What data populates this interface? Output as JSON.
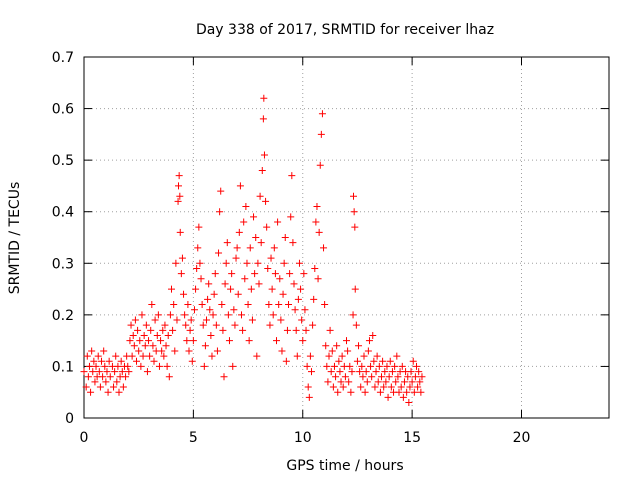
{
  "chart_data": {
    "type": "scatter",
    "title": "Day 338 of 2017, SRMTID for receiver lhaz",
    "xlabel": "GPS time / hours",
    "ylabel": "SRMTID / TECUs",
    "xlim": [
      0,
      24
    ],
    "ylim": [
      0,
      0.7
    ],
    "x_ticks": [
      0,
      5,
      10,
      15,
      20
    ],
    "y_ticks": [
      0,
      0.1,
      0.2,
      0.3,
      0.4,
      0.5,
      0.6,
      0.7
    ],
    "x_tick_labels": [
      "0",
      "5",
      "10",
      "15",
      "20"
    ],
    "y_tick_labels": [
      "0",
      "0.1",
      "0.2",
      "0.3",
      "0.4",
      "0.5",
      "0.6",
      "0.7"
    ],
    "grid": true,
    "marker": "+",
    "color": "#ff0000",
    "series": [
      {
        "name": "SRMTID",
        "points": [
          [
            0.0,
            0.09
          ],
          [
            0.1,
            0.06
          ],
          [
            0.15,
            0.12
          ],
          [
            0.2,
            0.08
          ],
          [
            0.25,
            0.1
          ],
          [
            0.3,
            0.05
          ],
          [
            0.35,
            0.13
          ],
          [
            0.4,
            0.09
          ],
          [
            0.45,
            0.11
          ],
          [
            0.5,
            0.07
          ],
          [
            0.55,
            0.1
          ],
          [
            0.6,
            0.08
          ],
          [
            0.65,
            0.12
          ],
          [
            0.7,
            0.09
          ],
          [
            0.75,
            0.06
          ],
          [
            0.8,
            0.11
          ],
          [
            0.85,
            0.08
          ],
          [
            0.9,
            0.13
          ],
          [
            0.95,
            0.1
          ],
          [
            1.0,
            0.07
          ],
          [
            1.05,
            0.09
          ],
          [
            1.1,
            0.05
          ],
          [
            1.15,
            0.11
          ],
          [
            1.2,
            0.08
          ],
          [
            1.3,
            0.1
          ],
          [
            1.35,
            0.06
          ],
          [
            1.4,
            0.09
          ],
          [
            1.45,
            0.12
          ],
          [
            1.5,
            0.07
          ],
          [
            1.55,
            0.1
          ],
          [
            1.6,
            0.05
          ],
          [
            1.65,
            0.08
          ],
          [
            1.7,
            0.11
          ],
          [
            1.75,
            0.09
          ],
          [
            1.8,
            0.06
          ],
          [
            1.85,
            0.1
          ],
          [
            1.9,
            0.08
          ],
          [
            1.95,
            0.12
          ],
          [
            2.0,
            0.1
          ],
          [
            2.05,
            0.09
          ],
          [
            2.1,
            0.15
          ],
          [
            2.15,
            0.18
          ],
          [
            2.2,
            0.12
          ],
          [
            2.25,
            0.16
          ],
          [
            2.3,
            0.14
          ],
          [
            2.35,
            0.19
          ],
          [
            2.4,
            0.11
          ],
          [
            2.45,
            0.17
          ],
          [
            2.5,
            0.13
          ],
          [
            2.55,
            0.15
          ],
          [
            2.6,
            0.1
          ],
          [
            2.65,
            0.2
          ],
          [
            2.7,
            0.12
          ],
          [
            2.75,
            0.16
          ],
          [
            2.8,
            0.14
          ],
          [
            2.85,
            0.18
          ],
          [
            2.9,
            0.09
          ],
          [
            2.95,
            0.15
          ],
          [
            3.0,
            0.12
          ],
          [
            3.05,
            0.17
          ],
          [
            3.1,
            0.22
          ],
          [
            3.15,
            0.14
          ],
          [
            3.2,
            0.11
          ],
          [
            3.25,
            0.19
          ],
          [
            3.3,
            0.13
          ],
          [
            3.35,
            0.16
          ],
          [
            3.4,
            0.2
          ],
          [
            3.45,
            0.1
          ],
          [
            3.5,
            0.15
          ],
          [
            3.55,
            0.13
          ],
          [
            3.6,
            0.17
          ],
          [
            3.65,
            0.12
          ],
          [
            3.7,
            0.18
          ],
          [
            3.75,
            0.14
          ],
          [
            3.8,
            0.1
          ],
          [
            3.85,
            0.16
          ],
          [
            3.9,
            0.08
          ],
          [
            3.95,
            0.2
          ],
          [
            4.0,
            0.25
          ],
          [
            4.05,
            0.17
          ],
          [
            4.1,
            0.22
          ],
          [
            4.15,
            0.13
          ],
          [
            4.2,
            0.3
          ],
          [
            4.25,
            0.19
          ],
          [
            4.3,
            0.42
          ],
          [
            4.32,
            0.45
          ],
          [
            4.35,
            0.47
          ],
          [
            4.38,
            0.43
          ],
          [
            4.4,
            0.36
          ],
          [
            4.45,
            0.28
          ],
          [
            4.5,
            0.31
          ],
          [
            4.55,
            0.24
          ],
          [
            4.6,
            0.2
          ],
          [
            4.65,
            0.18
          ],
          [
            4.7,
            0.15
          ],
          [
            4.75,
            0.22
          ],
          [
            4.8,
            0.13
          ],
          [
            4.85,
            0.17
          ],
          [
            4.9,
            0.19
          ],
          [
            4.95,
            0.11
          ],
          [
            5.0,
            0.15
          ],
          [
            5.05,
            0.21
          ],
          [
            5.1,
            0.25
          ],
          [
            5.15,
            0.29
          ],
          [
            5.2,
            0.33
          ],
          [
            5.25,
            0.37
          ],
          [
            5.3,
            0.3
          ],
          [
            5.35,
            0.27
          ],
          [
            5.4,
            0.22
          ],
          [
            5.45,
            0.18
          ],
          [
            5.5,
            0.1
          ],
          [
            5.55,
            0.14
          ],
          [
            5.6,
            0.19
          ],
          [
            5.65,
            0.23
          ],
          [
            5.7,
            0.26
          ],
          [
            5.75,
            0.21
          ],
          [
            5.8,
            0.16
          ],
          [
            5.85,
            0.12
          ],
          [
            5.9,
            0.2
          ],
          [
            5.95,
            0.24
          ],
          [
            6.0,
            0.28
          ],
          [
            6.05,
            0.18
          ],
          [
            6.1,
            0.13
          ],
          [
            6.15,
            0.32
          ],
          [
            6.2,
            0.4
          ],
          [
            6.25,
            0.44
          ],
          [
            6.3,
            0.22
          ],
          [
            6.35,
            0.17
          ],
          [
            6.4,
            0.08
          ],
          [
            6.45,
            0.26
          ],
          [
            6.5,
            0.3
          ],
          [
            6.55,
            0.34
          ],
          [
            6.6,
            0.2
          ],
          [
            6.65,
            0.15
          ],
          [
            6.7,
            0.25
          ],
          [
            6.75,
            0.28
          ],
          [
            6.8,
            0.1
          ],
          [
            6.85,
            0.21
          ],
          [
            6.9,
            0.18
          ],
          [
            6.95,
            0.31
          ],
          [
            7.0,
            0.33
          ],
          [
            7.05,
            0.24
          ],
          [
            7.1,
            0.36
          ],
          [
            7.15,
            0.45
          ],
          [
            7.2,
            0.2
          ],
          [
            7.25,
            0.17
          ],
          [
            7.3,
            0.38
          ],
          [
            7.35,
            0.27
          ],
          [
            7.4,
            0.41
          ],
          [
            7.45,
            0.3
          ],
          [
            7.5,
            0.22
          ],
          [
            7.55,
            0.15
          ],
          [
            7.6,
            0.33
          ],
          [
            7.65,
            0.25
          ],
          [
            7.7,
            0.19
          ],
          [
            7.75,
            0.39
          ],
          [
            7.8,
            0.28
          ],
          [
            7.85,
            0.35
          ],
          [
            7.9,
            0.12
          ],
          [
            7.95,
            0.3
          ],
          [
            8.0,
            0.26
          ],
          [
            8.05,
            0.43
          ],
          [
            8.1,
            0.34
          ],
          [
            8.15,
            0.48
          ],
          [
            8.2,
            0.58
          ],
          [
            8.22,
            0.62
          ],
          [
            8.25,
            0.51
          ],
          [
            8.3,
            0.42
          ],
          [
            8.35,
            0.37
          ],
          [
            8.4,
            0.29
          ],
          [
            8.45,
            0.22
          ],
          [
            8.5,
            0.18
          ],
          [
            8.55,
            0.31
          ],
          [
            8.6,
            0.25
          ],
          [
            8.65,
            0.2
          ],
          [
            8.7,
            0.33
          ],
          [
            8.75,
            0.28
          ],
          [
            8.8,
            0.15
          ],
          [
            8.85,
            0.38
          ],
          [
            8.9,
            0.22
          ],
          [
            8.95,
            0.27
          ],
          [
            9.0,
            0.19
          ],
          [
            9.05,
            0.13
          ],
          [
            9.1,
            0.24
          ],
          [
            9.15,
            0.3
          ],
          [
            9.2,
            0.35
          ],
          [
            9.25,
            0.11
          ],
          [
            9.3,
            0.17
          ],
          [
            9.35,
            0.22
          ],
          [
            9.4,
            0.28
          ],
          [
            9.45,
            0.39
          ],
          [
            9.5,
            0.47
          ],
          [
            9.55,
            0.34
          ],
          [
            9.6,
            0.26
          ],
          [
            9.65,
            0.21
          ],
          [
            9.7,
            0.17
          ],
          [
            9.75,
            0.12
          ],
          [
            9.8,
            0.23
          ],
          [
            9.85,
            0.3
          ],
          [
            9.9,
            0.25
          ],
          [
            9.95,
            0.19
          ],
          [
            10.0,
            0.15
          ],
          [
            10.05,
            0.28
          ],
          [
            10.1,
            0.21
          ],
          [
            10.15,
            0.17
          ],
          [
            10.2,
            0.1
          ],
          [
            10.25,
            0.06
          ],
          [
            10.3,
            0.04
          ],
          [
            10.35,
            0.12
          ],
          [
            10.4,
            0.09
          ],
          [
            10.45,
            0.18
          ],
          [
            10.5,
            0.23
          ],
          [
            10.55,
            0.29
          ],
          [
            10.6,
            0.38
          ],
          [
            10.65,
            0.41
          ],
          [
            10.7,
            0.27
          ],
          [
            10.75,
            0.36
          ],
          [
            10.8,
            0.49
          ],
          [
            10.85,
            0.55
          ],
          [
            10.9,
            0.59
          ],
          [
            10.95,
            0.33
          ],
          [
            11.0,
            0.22
          ],
          [
            11.05,
            0.14
          ],
          [
            11.1,
            0.1
          ],
          [
            11.15,
            0.07
          ],
          [
            11.2,
            0.12
          ],
          [
            11.25,
            0.17
          ],
          [
            11.3,
            0.09
          ],
          [
            11.35,
            0.13
          ],
          [
            11.4,
            0.06
          ],
          [
            11.45,
            0.1
          ],
          [
            11.5,
            0.08
          ],
          [
            11.55,
            0.14
          ],
          [
            11.6,
            0.05
          ],
          [
            11.65,
            0.11
          ],
          [
            11.7,
            0.09
          ],
          [
            11.75,
            0.07
          ],
          [
            11.8,
            0.12
          ],
          [
            11.85,
            0.06
          ],
          [
            11.9,
            0.1
          ],
          [
            11.95,
            0.08
          ],
          [
            12.0,
            0.15
          ],
          [
            12.05,
            0.13
          ],
          [
            12.1,
            0.07
          ],
          [
            12.15,
            0.1
          ],
          [
            12.2,
            0.05
          ],
          [
            12.25,
            0.09
          ],
          [
            12.3,
            0.2
          ],
          [
            12.32,
            0.43
          ],
          [
            12.35,
            0.4
          ],
          [
            12.38,
            0.37
          ],
          [
            12.4,
            0.25
          ],
          [
            12.45,
            0.18
          ],
          [
            12.5,
            0.11
          ],
          [
            12.55,
            0.14
          ],
          [
            12.6,
            0.09
          ],
          [
            12.65,
            0.06
          ],
          [
            12.7,
            0.1
          ],
          [
            12.75,
            0.08
          ],
          [
            12.8,
            0.12
          ],
          [
            12.85,
            0.05
          ],
          [
            12.9,
            0.09
          ],
          [
            12.95,
            0.07
          ],
          [
            13.0,
            0.13
          ],
          [
            13.05,
            0.15
          ],
          [
            13.1,
            0.1
          ],
          [
            13.15,
            0.08
          ],
          [
            13.2,
            0.16
          ],
          [
            13.25,
            0.11
          ],
          [
            13.3,
            0.06
          ],
          [
            13.35,
            0.09
          ],
          [
            13.4,
            0.12
          ],
          [
            13.45,
            0.07
          ],
          [
            13.5,
            0.1
          ],
          [
            13.55,
            0.05
          ],
          [
            13.6,
            0.08
          ],
          [
            13.65,
            0.11
          ],
          [
            13.7,
            0.06
          ],
          [
            13.75,
            0.09
          ],
          [
            13.8,
            0.07
          ],
          [
            13.85,
            0.1
          ],
          [
            13.9,
            0.04
          ],
          [
            13.95,
            0.08
          ],
          [
            14.0,
            0.11
          ],
          [
            14.05,
            0.06
          ],
          [
            14.1,
            0.09
          ],
          [
            14.15,
            0.05
          ],
          [
            14.2,
            0.1
          ],
          [
            14.25,
            0.07
          ],
          [
            14.3,
            0.12
          ],
          [
            14.35,
            0.08
          ],
          [
            14.4,
            0.05
          ],
          [
            14.45,
            0.09
          ],
          [
            14.5,
            0.06
          ],
          [
            14.55,
            0.1
          ],
          [
            14.6,
            0.04
          ],
          [
            14.65,
            0.07
          ],
          [
            14.7,
            0.09
          ],
          [
            14.75,
            0.05
          ],
          [
            14.8,
            0.08
          ],
          [
            14.85,
            0.03
          ],
          [
            14.9,
            0.06
          ],
          [
            14.95,
            0.09
          ],
          [
            15.0,
            0.07
          ],
          [
            15.05,
            0.11
          ],
          [
            15.1,
            0.05
          ],
          [
            15.15,
            0.08
          ],
          [
            15.2,
            0.1
          ],
          [
            15.25,
            0.06
          ],
          [
            15.3,
            0.09
          ],
          [
            15.35,
            0.07
          ],
          [
            15.4,
            0.05
          ],
          [
            15.45,
            0.08
          ]
        ]
      }
    ]
  }
}
